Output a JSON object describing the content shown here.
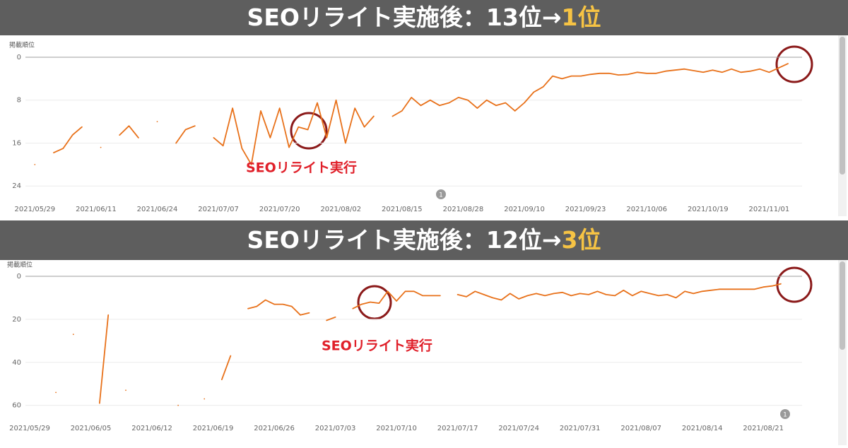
{
  "chart_data": [
    {
      "type": "line",
      "title": "SEOリライト実施後：13位→",
      "title_highlight": "1位",
      "y_label": "掲載順位",
      "annotation": "SEOリライト実行",
      "badge": "1",
      "xlim": [
        "2021/05/27",
        "2021/11/08"
      ],
      "xticks": [
        "2021/05/29",
        "2021/06/11",
        "2021/06/24",
        "2021/07/07",
        "2021/07/20",
        "2021/08/02",
        "2021/08/15",
        "2021/08/28",
        "2021/09/10",
        "2021/09/23",
        "2021/10/06",
        "2021/10/19",
        "2021/11/01"
      ],
      "ylim": [
        27,
        0
      ],
      "yticks": [
        0,
        8,
        16,
        24
      ],
      "grid": true,
      "x": [
        "2021/05/29",
        "2021/05/31",
        "2021/06/02",
        "2021/06/04",
        "2021/06/06",
        "2021/06/08",
        "2021/06/10",
        "2021/06/12",
        "2021/06/14",
        "2021/06/16",
        "2021/06/18",
        "2021/06/20",
        "2021/06/22",
        "2021/06/24",
        "2021/06/26",
        "2021/06/28",
        "2021/06/30",
        "2021/07/02",
        "2021/07/04",
        "2021/07/06",
        "2021/07/08",
        "2021/07/10",
        "2021/07/12",
        "2021/07/14",
        "2021/07/16",
        "2021/07/18",
        "2021/07/20",
        "2021/07/22",
        "2021/07/24",
        "2021/07/26",
        "2021/07/28",
        "2021/07/30",
        "2021/08/01",
        "2021/08/03",
        "2021/08/05",
        "2021/08/07",
        "2021/08/09",
        "2021/08/11",
        "2021/08/13",
        "2021/08/15",
        "2021/08/17",
        "2021/08/19",
        "2021/08/21",
        "2021/08/23",
        "2021/08/25",
        "2021/08/27",
        "2021/08/29",
        "2021/08/31",
        "2021/09/02",
        "2021/09/04",
        "2021/09/06",
        "2021/09/08",
        "2021/09/10",
        "2021/09/12",
        "2021/09/14",
        "2021/09/16",
        "2021/09/18",
        "2021/09/20",
        "2021/09/22",
        "2021/09/24",
        "2021/09/26",
        "2021/09/28",
        "2021/09/30",
        "2021/10/02",
        "2021/10/04",
        "2021/10/06",
        "2021/10/08",
        "2021/10/10",
        "2021/10/12",
        "2021/10/14",
        "2021/10/16",
        "2021/10/18",
        "2021/10/20",
        "2021/10/22",
        "2021/10/24",
        "2021/10/26",
        "2021/10/28",
        "2021/10/30",
        "2021/11/01",
        "2021/11/03",
        "2021/11/05"
      ],
      "series": [
        {
          "color": "#e8711a",
          "values": [
            20,
            null,
            17.8,
            17,
            14.5,
            13,
            null,
            16.8,
            null,
            14.5,
            12.8,
            15,
            null,
            12,
            null,
            16,
            13.5,
            12.8,
            null,
            15,
            16.5,
            9.5,
            17,
            20,
            10,
            15,
            9.5,
            16.8,
            13,
            13.5,
            8.5,
            15,
            8,
            16,
            9.5,
            13,
            11,
            null,
            11,
            10,
            7.5,
            9,
            8,
            9,
            8.5,
            7.5,
            8,
            9.5,
            8,
            9,
            8.5,
            10,
            8.5,
            6.5,
            5.5,
            3.5,
            4,
            3.5,
            3.5,
            3.2,
            3,
            3,
            3.3,
            3.2,
            2.8,
            3,
            3,
            2.6,
            2.4,
            2.2,
            2.5,
            2.8,
            2.4,
            2.8,
            2.2,
            2.8,
            2.6,
            2.2,
            2.8,
            2,
            1.2
          ]
        }
      ]
    },
    {
      "type": "line",
      "title": "SEOリライト実施後：12位→",
      "title_highlight": "3位",
      "y_label": "掲載順位",
      "annotation": "SEOリライト実行",
      "badge": "1",
      "xlim": [
        "2021/05/29",
        "2021/08/26"
      ],
      "xticks": [
        "2021/05/29",
        "2021/06/05",
        "2021/06/12",
        "2021/06/19",
        "2021/06/26",
        "2021/07/03",
        "2021/07/10",
        "2021/07/17",
        "2021/07/24",
        "2021/07/31",
        "2021/08/07",
        "2021/08/14",
        "2021/08/21"
      ],
      "ylim": [
        68,
        0
      ],
      "yticks": [
        0,
        20,
        40,
        60
      ],
      "grid": true,
      "x": [
        "2021/05/29",
        "2021/05/30",
        "2021/05/31",
        "2021/06/01",
        "2021/06/02",
        "2021/06/03",
        "2021/06/04",
        "2021/06/05",
        "2021/06/06",
        "2021/06/07",
        "2021/06/08",
        "2021/06/09",
        "2021/06/10",
        "2021/06/11",
        "2021/06/12",
        "2021/06/13",
        "2021/06/14",
        "2021/06/15",
        "2021/06/16",
        "2021/06/17",
        "2021/06/18",
        "2021/06/19",
        "2021/06/20",
        "2021/06/21",
        "2021/06/22",
        "2021/06/23",
        "2021/06/24",
        "2021/06/25",
        "2021/06/26",
        "2021/06/27",
        "2021/06/28",
        "2021/06/29",
        "2021/06/30",
        "2021/07/01",
        "2021/07/02",
        "2021/07/03",
        "2021/07/04",
        "2021/07/05",
        "2021/07/06",
        "2021/07/07",
        "2021/07/08",
        "2021/07/09",
        "2021/07/10",
        "2021/07/11",
        "2021/07/12",
        "2021/07/13",
        "2021/07/14",
        "2021/07/15",
        "2021/07/16",
        "2021/07/17",
        "2021/07/18",
        "2021/07/19",
        "2021/07/20",
        "2021/07/21",
        "2021/07/22",
        "2021/07/23",
        "2021/07/24",
        "2021/07/25",
        "2021/07/26",
        "2021/07/27",
        "2021/07/28",
        "2021/07/29",
        "2021/07/30",
        "2021/07/31",
        "2021/08/01",
        "2021/08/02",
        "2021/08/03",
        "2021/08/04",
        "2021/08/05",
        "2021/08/06",
        "2021/08/07",
        "2021/08/08",
        "2021/08/09",
        "2021/08/10",
        "2021/08/11",
        "2021/08/12",
        "2021/08/13",
        "2021/08/14",
        "2021/08/15",
        "2021/08/16",
        "2021/08/17",
        "2021/08/18",
        "2021/08/19",
        "2021/08/20",
        "2021/08/21",
        "2021/08/22",
        "2021/08/23"
      ],
      "series": [
        {
          "color": "#e8711a",
          "values": [
            null,
            null,
            null,
            54,
            null,
            27,
            null,
            null,
            59,
            18,
            null,
            53,
            null,
            null,
            null,
            null,
            null,
            60,
            null,
            null,
            57,
            null,
            48,
            37,
            null,
            15,
            14,
            11,
            13,
            13,
            14,
            18,
            17,
            null,
            20.5,
            19,
            null,
            15,
            13,
            12,
            12.5,
            7,
            11.5,
            7,
            7,
            9,
            9,
            9,
            null,
            8.5,
            9.5,
            7,
            8.5,
            10,
            11,
            8,
            10.5,
            9,
            8,
            9,
            8,
            7.5,
            9,
            8,
            8.5,
            7,
            8.5,
            9,
            6.5,
            9,
            7,
            8,
            9,
            8.5,
            10,
            7,
            8,
            7,
            6.5,
            6,
            6,
            6,
            6,
            6,
            5,
            4.5,
            3.5
          ]
        }
      ]
    }
  ]
}
